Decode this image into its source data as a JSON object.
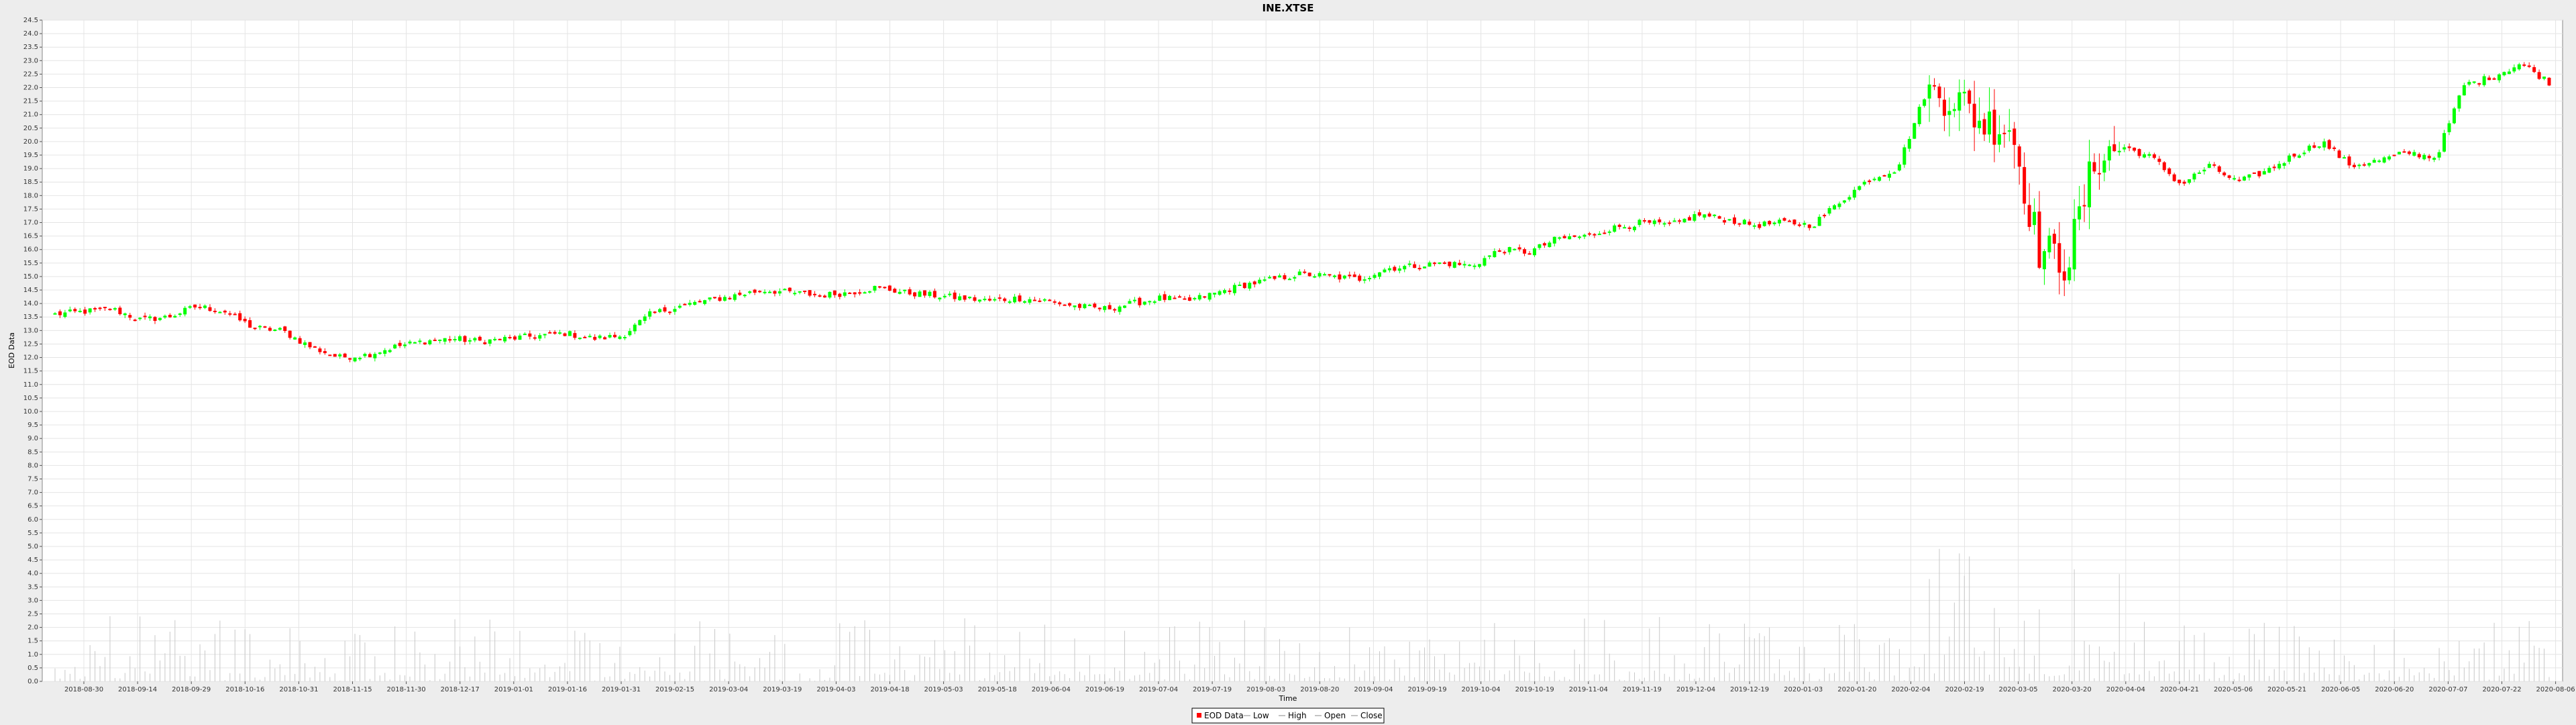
{
  "chart_data": {
    "type": "candlestick",
    "title": "INE.XTSE",
    "xlabel": "Time",
    "ylabel": "EOD Data",
    "ylim": [
      0,
      24.5
    ],
    "y_ticks": [
      "0.0",
      "0.5",
      "1.0",
      "1.5",
      "2.0",
      "2.5",
      "3.0",
      "3.5",
      "4.0",
      "4.5",
      "5.0",
      "5.5",
      "6.0",
      "6.5",
      "7.0",
      "7.5",
      "8.0",
      "8.5",
      "9.0",
      "9.5",
      "10.0",
      "10.5",
      "11.0",
      "11.5",
      "12.0",
      "12.5",
      "13.0",
      "13.5",
      "14.0",
      "14.5",
      "15.0",
      "15.5",
      "16.0",
      "16.5",
      "17.0",
      "17.5",
      "18.0",
      "18.5",
      "19.0",
      "19.5",
      "20.0",
      "20.5",
      "21.0",
      "21.5",
      "22.0",
      "22.5",
      "23.0",
      "23.5",
      "24.0",
      "24.5"
    ],
    "x_ticks": [
      "2018-08-30",
      "2018-09-14",
      "2018-09-29",
      "2018-10-16",
      "2018-10-31",
      "2018-11-15",
      "2018-11-30",
      "2018-12-17",
      "2019-01-01",
      "2019-01-16",
      "2019-01-31",
      "2019-02-15",
      "2019-03-04",
      "2019-03-19",
      "2019-04-03",
      "2019-04-18",
      "2019-05-03",
      "2019-05-18",
      "2019-06-04",
      "2019-06-19",
      "2019-07-04",
      "2019-07-19",
      "2019-08-03",
      "2019-08-20",
      "2019-09-04",
      "2019-09-19",
      "2019-10-04",
      "2019-10-19",
      "2019-11-04",
      "2019-11-19",
      "2019-12-04",
      "2019-12-19",
      "2020-01-03",
      "2020-01-20",
      "2020-02-04",
      "2020-02-19",
      "2020-03-05",
      "2020-03-20",
      "2020-04-04",
      "2020-04-21",
      "2020-05-06",
      "2020-05-21",
      "2020-06-05",
      "2020-06-20",
      "2020-07-07",
      "2020-07-22",
      "2020-08-06"
    ],
    "close_anchors": [
      13.6,
      13.7,
      13.8,
      13.4,
      13.5,
      13.9,
      13.7,
      13.1,
      13.0,
      12.4,
      12.0,
      12.1,
      12.4,
      12.6,
      12.7,
      12.6,
      12.7,
      12.8,
      12.9,
      12.7,
      12.8,
      13.6,
      13.9,
      14.1,
      14.3,
      14.5,
      14.4,
      14.3,
      14.4,
      14.6,
      14.4,
      14.3,
      14.2,
      14.1,
      14.2,
      14.1,
      13.9,
      13.8,
      14.0,
      14.2,
      14.1,
      14.4,
      14.7,
      14.9,
      15.1,
      15.0,
      14.9,
      15.3,
      15.4,
      15.5,
      15.4,
      16.0,
      15.9,
      16.4,
      16.5,
      16.8,
      17.0,
      16.9,
      17.3,
      17.1,
      16.9,
      17.0,
      16.9,
      17.8,
      18.6,
      19.0,
      21.8,
      21.7,
      20.7,
      20.6,
      16.0,
      15.5,
      19.4,
      19.8,
      19.4,
      18.4,
      19.1,
      18.5,
      18.9,
      19.5,
      20.0,
      19.1,
      19.3,
      19.6,
      19.4,
      22.1,
      22.4,
      22.9,
      22.2
    ],
    "candles": [
      {
        "date": "2018-08-30",
        "open": 13.54,
        "high": 13.65,
        "low": 13.44,
        "close": 13.6
      },
      {
        "date": "2018-10-16",
        "open": 12.1,
        "high": 12.22,
        "low": 11.9,
        "close": 12.0
      },
      {
        "date": "2019-06-19",
        "open": 13.7,
        "high": 14.2,
        "low": 13.5,
        "close": 14.0
      },
      {
        "date": "2020-02-19",
        "open": 21.9,
        "high": 22.3,
        "low": 21.6,
        "close": 21.8
      },
      {
        "date": "2020-03-20",
        "open": 15.2,
        "high": 17.8,
        "low": 13.9,
        "close": 16.0
      },
      {
        "date": "2020-08-06",
        "open": 22.4,
        "high": 22.7,
        "low": 22.0,
        "close": 22.2
      }
    ],
    "series": [
      {
        "name": "EOD Data"
      },
      {
        "name": "Low"
      },
      {
        "name": "High"
      },
      {
        "name": "Open"
      },
      {
        "name": "Close"
      }
    ],
    "colors": {
      "up": "#00ff00",
      "down": "#ff0000",
      "volume": "#c8c8c8",
      "grid": "#e4e4e4",
      "frame": "#000000"
    },
    "grid": true,
    "legend_position": "bottom-center"
  }
}
